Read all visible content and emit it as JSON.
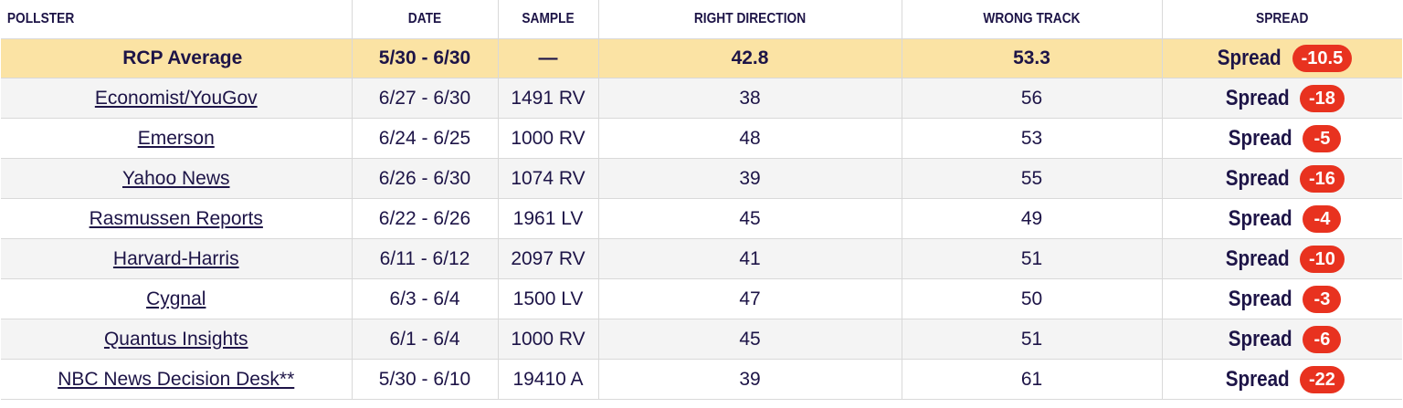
{
  "columns": {
    "pollster": "POLLSTER",
    "date": "DATE",
    "sample": "SAMPLE",
    "right": "RIGHT DIRECTION",
    "wrong": "WRONG TRACK",
    "spread": "SPREAD"
  },
  "average": {
    "pollster": "RCP Average",
    "date": "5/30 - 6/30",
    "sample": "—",
    "right": "42.8",
    "wrong": "53.3",
    "spread_label": "Spread",
    "spread_value": "-10.5"
  },
  "rows": [
    {
      "pollster": "Economist/YouGov",
      "date": "6/27 - 6/30",
      "sample": "1491 RV",
      "right": "38",
      "wrong": "56",
      "spread_label": "Spread",
      "spread_value": "-18"
    },
    {
      "pollster": "Emerson",
      "date": "6/24 - 6/25",
      "sample": "1000 RV",
      "right": "48",
      "wrong": "53",
      "spread_label": "Spread",
      "spread_value": "-5"
    },
    {
      "pollster": "Yahoo News",
      "date": "6/26 - 6/30",
      "sample": "1074 RV",
      "right": "39",
      "wrong": "55",
      "spread_label": "Spread",
      "spread_value": "-16"
    },
    {
      "pollster": "Rasmussen Reports",
      "date": "6/22 - 6/26",
      "sample": "1961 LV",
      "right": "45",
      "wrong": "49",
      "spread_label": "Spread",
      "spread_value": "-4"
    },
    {
      "pollster": "Harvard-Harris",
      "date": "6/11 - 6/12",
      "sample": "2097 RV",
      "right": "41",
      "wrong": "51",
      "spread_label": "Spread",
      "spread_value": "-10"
    },
    {
      "pollster": "Cygnal",
      "date": "6/3 - 6/4",
      "sample": "1500 LV",
      "right": "47",
      "wrong": "50",
      "spread_label": "Spread",
      "spread_value": "-3"
    },
    {
      "pollster": "Quantus Insights",
      "date": "6/1 - 6/4",
      "sample": "1000 RV",
      "right": "45",
      "wrong": "51",
      "spread_label": "Spread",
      "spread_value": "-6"
    },
    {
      "pollster": "NBC News Decision Desk**",
      "date": "5/30 - 6/10",
      "sample": "19410 A",
      "right": "39",
      "wrong": "61",
      "spread_label": "Spread",
      "spread_value": "-22"
    }
  ],
  "colors": {
    "text": "#1d1447",
    "average_row_bg": "#fbe3a4",
    "spread_badge_bg": "#e8321f",
    "row_bg": "#f4f4f4",
    "row_alt_bg": "#ffffff"
  }
}
